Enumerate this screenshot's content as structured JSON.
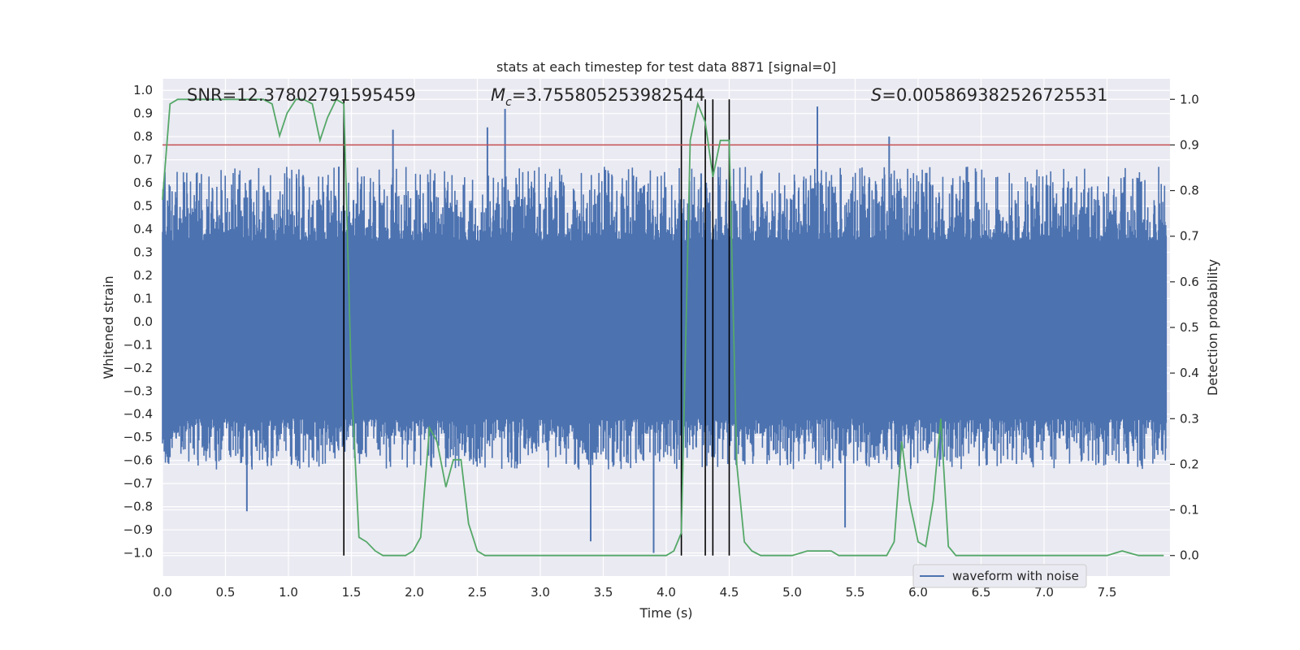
{
  "chart_data": {
    "type": "line",
    "title": "stats at each timestep for test data 8871 [signal=0]",
    "xlabel": "Time (s)",
    "ylabel_left": "Whitened strain",
    "ylabel_right": "Detection probability",
    "xlim": [
      0.0,
      8.0
    ],
    "ylim_left": [
      -1.1,
      1.05
    ],
    "ylim_right": [
      -0.045,
      1.045
    ],
    "xticks": [
      "0.0",
      "0.5",
      "1.0",
      "1.5",
      "2.0",
      "2.5",
      "3.0",
      "3.5",
      "4.0",
      "4.5",
      "5.0",
      "5.5",
      "6.0",
      "6.5",
      "7.0",
      "7.5"
    ],
    "yticks_left": [
      "1.0",
      "0.9",
      "0.8",
      "0.7",
      "0.6",
      "0.5",
      "0.4",
      "0.3",
      "0.2",
      "0.1",
      "0.0",
      "-0.1",
      "-0.2",
      "-0.3",
      "-0.4",
      "-0.5",
      "-0.6",
      "-0.7",
      "-0.8",
      "-0.9",
      "-1.0"
    ],
    "yticks_right": [
      "1.0",
      "0.9",
      "0.8",
      "0.7",
      "0.6",
      "0.5",
      "0.4",
      "0.3",
      "0.2",
      "0.1",
      "0.0"
    ],
    "grid": true,
    "legend_position": "lower right",
    "annotations": {
      "snr": "SNR=12.37802791595459",
      "mc_symbol": "M",
      "mc_sub": "c",
      "mc_value": "=3.755805253982544",
      "s_symbol": "S",
      "s_value": "=0.005869382526725531"
    },
    "threshold": 0.9,
    "threshold_color": "#c44e52",
    "detection_markers": [
      1.44,
      4.12,
      4.31,
      4.37,
      4.5
    ],
    "series": [
      {
        "name": "waveform with noise",
        "axis": "left",
        "color": "#4c72b0",
        "description_values": {
          "typical_band": [
            -0.42,
            0.35
          ],
          "peaks": [
            [
              1.4,
              0.67
            ],
            [
              1.83,
              0.83
            ],
            [
              2.58,
              0.84
            ],
            [
              2.72,
              0.92
            ],
            [
              5.2,
              0.93
            ],
            [
              5.77,
              0.8
            ],
            [
              3.4,
              -0.95
            ],
            [
              3.9,
              -1.0
            ],
            [
              0.67,
              -0.82
            ],
            [
              5.42,
              -0.89
            ]
          ]
        }
      },
      {
        "name": "",
        "axis": "right",
        "color": "#55a868",
        "x": [
          0.0,
          0.06,
          0.12,
          0.2,
          0.3,
          0.4,
          0.5,
          0.6,
          0.7,
          0.8,
          0.87,
          0.93,
          0.99,
          1.06,
          1.12,
          1.19,
          1.25,
          1.31,
          1.38,
          1.44,
          1.5,
          1.56,
          1.62,
          1.69,
          1.75,
          1.81,
          1.87,
          1.93,
          1.99,
          2.05,
          2.12,
          2.18,
          2.25,
          2.31,
          2.37,
          2.43,
          2.5,
          2.56,
          2.62,
          2.75,
          3.0,
          3.25,
          3.5,
          3.75,
          4.0,
          4.06,
          4.12,
          4.19,
          4.25,
          4.31,
          4.37,
          4.43,
          4.5,
          4.56,
          4.62,
          4.68,
          4.75,
          4.87,
          5.0,
          5.12,
          5.18,
          5.25,
          5.31,
          5.37,
          5.5,
          5.62,
          5.75,
          5.81,
          5.87,
          5.93,
          6.0,
          6.06,
          6.12,
          6.18,
          6.24,
          6.3,
          6.36,
          6.5,
          6.75,
          7.0,
          7.25,
          7.5,
          7.62,
          7.75,
          7.87,
          7.95
        ],
        "values": [
          0.78,
          0.99,
          1.0,
          1.0,
          1.0,
          1.0,
          1.0,
          1.0,
          1.0,
          1.0,
          0.99,
          0.92,
          0.97,
          1.0,
          1.0,
          0.99,
          0.91,
          0.96,
          1.0,
          0.99,
          0.38,
          0.04,
          0.03,
          0.01,
          0.0,
          0.0,
          0.0,
          0.0,
          0.01,
          0.04,
          0.28,
          0.25,
          0.15,
          0.21,
          0.21,
          0.07,
          0.01,
          0.0,
          0.0,
          0.0,
          0.0,
          0.0,
          0.0,
          0.0,
          0.0,
          0.01,
          0.05,
          0.91,
          0.99,
          0.95,
          0.83,
          0.91,
          0.91,
          0.2,
          0.03,
          0.01,
          0.0,
          0.0,
          0.0,
          0.01,
          0.01,
          0.01,
          0.01,
          0.0,
          0.0,
          0.0,
          0.0,
          0.03,
          0.25,
          0.12,
          0.03,
          0.02,
          0.12,
          0.3,
          0.02,
          0.0,
          0.0,
          0.0,
          0.0,
          0.0,
          0.0,
          0.0,
          0.01,
          0.0,
          0.0,
          0.0
        ]
      }
    ]
  }
}
